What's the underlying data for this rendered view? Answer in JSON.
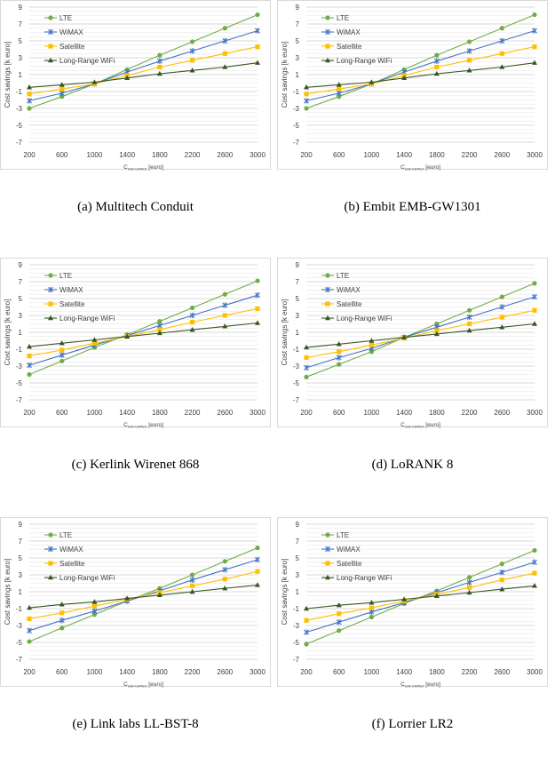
{
  "legend_entries": [
    "LTE",
    "WiMAX",
    "Satellite",
    "Long-Range WiFi"
  ],
  "colors": {
    "LTE": "#70ad47",
    "WiMAX": "#4472c4",
    "Satellite": "#ffc000",
    "Long-Range WiFi": "#375623"
  },
  "chart_data": [
    {
      "type": "line",
      "caption": "(a) Multitech Conduit",
      "ylabel": "Cost savings [k euro]",
      "xlabel": "C_GW-CAPEX [euro]",
      "xlabel_main": "C",
      "xlabel_sub": "GW-CAPEX",
      "xlabel_unit": " [euro]",
      "x": [
        200,
        600,
        1000,
        1400,
        1800,
        2200,
        2600,
        3000
      ],
      "y_ticks": [
        9,
        7,
        5,
        3,
        1,
        -1,
        -3,
        -5,
        -7
      ],
      "ylim": [
        -7,
        9
      ],
      "legend": "top-left",
      "series": [
        {
          "name": "LTE",
          "values": [
            -3.0,
            -1.6,
            -0.1,
            1.6,
            3.3,
            4.9,
            6.5,
            8.1
          ]
        },
        {
          "name": "WiMAX",
          "values": [
            -2.1,
            -1.2,
            -0.1,
            1.3,
            2.6,
            3.8,
            5.0,
            6.2
          ]
        },
        {
          "name": "Satellite",
          "values": [
            -1.3,
            -0.7,
            -0.1,
            0.9,
            1.9,
            2.7,
            3.5,
            4.3
          ]
        },
        {
          "name": "Long-Range WiFi",
          "values": [
            -0.5,
            -0.2,
            0.1,
            0.6,
            1.1,
            1.5,
            1.9,
            2.4
          ]
        }
      ]
    },
    {
      "type": "line",
      "caption": "(b) Embit EMB-GW1301",
      "ylabel": "Cost savings [k euro]",
      "xlabel": "C_GW-CAPEX [euro]",
      "xlabel_main": "C",
      "xlabel_sub": "GW-CAPEX",
      "xlabel_unit": " [euro]",
      "x": [
        200,
        600,
        1000,
        1400,
        1800,
        2200,
        2600,
        3000
      ],
      "y_ticks": [
        9,
        7,
        5,
        3,
        1,
        -1,
        -3,
        -5,
        -7
      ],
      "ylim": [
        -7,
        9
      ],
      "legend": "top-left",
      "series": [
        {
          "name": "LTE",
          "values": [
            -3.0,
            -1.6,
            -0.1,
            1.6,
            3.3,
            4.9,
            6.5,
            8.1
          ]
        },
        {
          "name": "WiMAX",
          "values": [
            -2.1,
            -1.2,
            -0.1,
            1.3,
            2.6,
            3.8,
            5.0,
            6.2
          ]
        },
        {
          "name": "Satellite",
          "values": [
            -1.3,
            -0.7,
            -0.1,
            0.9,
            1.9,
            2.7,
            3.5,
            4.3
          ]
        },
        {
          "name": "Long-Range WiFi",
          "values": [
            -0.5,
            -0.2,
            0.1,
            0.6,
            1.1,
            1.5,
            1.9,
            2.4
          ]
        }
      ]
    },
    {
      "type": "line",
      "caption": "(c) Kerlink Wirenet 868",
      "ylabel": "Cost savings [k euro]",
      "xlabel": "C_GW-CAPEX [euro]",
      "xlabel_main": "C",
      "xlabel_sub": "GW-CAPEX",
      "xlabel_unit": " [euro]",
      "x": [
        200,
        600,
        1000,
        1400,
        1800,
        2200,
        2600,
        3000
      ],
      "y_ticks": [
        9,
        7,
        5,
        3,
        1,
        -1,
        -3,
        -5,
        -7
      ],
      "ylim": [
        -7,
        9
      ],
      "legend": "top-left",
      "series": [
        {
          "name": "LTE",
          "values": [
            -4.0,
            -2.4,
            -0.8,
            0.7,
            2.3,
            3.9,
            5.5,
            7.1
          ]
        },
        {
          "name": "WiMAX",
          "values": [
            -2.9,
            -1.7,
            -0.5,
            0.6,
            1.8,
            3.0,
            4.2,
            5.4
          ]
        },
        {
          "name": "Satellite",
          "values": [
            -1.8,
            -1.1,
            -0.3,
            0.5,
            1.3,
            2.2,
            3.0,
            3.8
          ]
        },
        {
          "name": "Long-Range WiFi",
          "values": [
            -0.7,
            -0.3,
            0.1,
            0.5,
            0.9,
            1.3,
            1.7,
            2.1
          ]
        }
      ]
    },
    {
      "type": "line",
      "caption": "(d) LoRANK 8",
      "ylabel": "Cost savings [k euro]",
      "xlabel": "C_GW-CAPEX [euro]",
      "xlabel_main": "C",
      "xlabel_sub": "GW-CAPEX",
      "xlabel_unit": " [euro]",
      "x": [
        200,
        600,
        1000,
        1400,
        1800,
        2200,
        2600,
        3000
      ],
      "y_ticks": [
        9,
        7,
        5,
        3,
        1,
        -1,
        -3,
        -5,
        -7
      ],
      "ylim": [
        -7,
        9
      ],
      "legend": "top-left",
      "series": [
        {
          "name": "LTE",
          "values": [
            -4.3,
            -2.8,
            -1.3,
            0.4,
            2.0,
            3.6,
            5.2,
            6.8
          ]
        },
        {
          "name": "WiMAX",
          "values": [
            -3.2,
            -2.0,
            -0.9,
            0.4,
            1.6,
            2.8,
            4.0,
            5.2
          ]
        },
        {
          "name": "Satellite",
          "values": [
            -2.0,
            -1.3,
            -0.5,
            0.3,
            1.2,
            2.0,
            2.8,
            3.6
          ]
        },
        {
          "name": "Long-Range WiFi",
          "values": [
            -0.8,
            -0.4,
            0.0,
            0.4,
            0.8,
            1.2,
            1.6,
            2.0
          ]
        }
      ]
    },
    {
      "type": "line",
      "caption": "(e) Link labs LL-BST-8",
      "ylabel": "Cost savings [k euro]",
      "xlabel": "C_GW-CAPEX [euro]",
      "xlabel_main": "C",
      "xlabel_sub": "GW-CAPEX",
      "xlabel_unit": " [euro]",
      "x": [
        200,
        600,
        1000,
        1400,
        1800,
        2200,
        2600,
        3000
      ],
      "y_ticks": [
        9,
        7,
        5,
        3,
        1,
        -1,
        -3,
        -5,
        -7
      ],
      "ylim": [
        -7,
        9
      ],
      "legend": "top-left",
      "series": [
        {
          "name": "LTE",
          "values": [
            -4.9,
            -3.3,
            -1.7,
            -0.1,
            1.4,
            3.0,
            4.6,
            6.2
          ]
        },
        {
          "name": "WiMAX",
          "values": [
            -3.6,
            -2.4,
            -1.3,
            -0.1,
            1.1,
            2.4,
            3.6,
            4.8
          ]
        },
        {
          "name": "Satellite",
          "values": [
            -2.2,
            -1.5,
            -0.7,
            0.1,
            0.9,
            1.7,
            2.5,
            3.4
          ]
        },
        {
          "name": "Long-Range WiFi",
          "values": [
            -0.9,
            -0.5,
            -0.2,
            0.2,
            0.6,
            1.0,
            1.4,
            1.8
          ]
        }
      ]
    },
    {
      "type": "line",
      "caption": "(f) Lorrier LR2",
      "ylabel": "Cost savings [k euro]",
      "xlabel": "C_GW-CAPEX [euro]",
      "xlabel_main": "C",
      "xlabel_sub": "GW-CAPEX",
      "xlabel_unit": " [euro]",
      "x": [
        200,
        600,
        1000,
        1400,
        1800,
        2200,
        2600,
        3000
      ],
      "y_ticks": [
        9,
        7,
        5,
        3,
        1,
        -1,
        -3,
        -5,
        -7
      ],
      "ylim": [
        -7,
        9
      ],
      "legend": "top-left",
      "series": [
        {
          "name": "LTE",
          "values": [
            -5.2,
            -3.6,
            -2.0,
            -0.4,
            1.1,
            2.7,
            4.3,
            5.9
          ]
        },
        {
          "name": "WiMAX",
          "values": [
            -3.8,
            -2.6,
            -1.4,
            -0.3,
            0.9,
            2.1,
            3.3,
            4.5
          ]
        },
        {
          "name": "Satellite",
          "values": [
            -2.4,
            -1.6,
            -0.9,
            -0.1,
            0.7,
            1.5,
            2.4,
            3.2
          ]
        },
        {
          "name": "Long-Range WiFi",
          "values": [
            -1.0,
            -0.6,
            -0.3,
            0.1,
            0.5,
            0.9,
            1.3,
            1.7
          ]
        }
      ]
    }
  ]
}
